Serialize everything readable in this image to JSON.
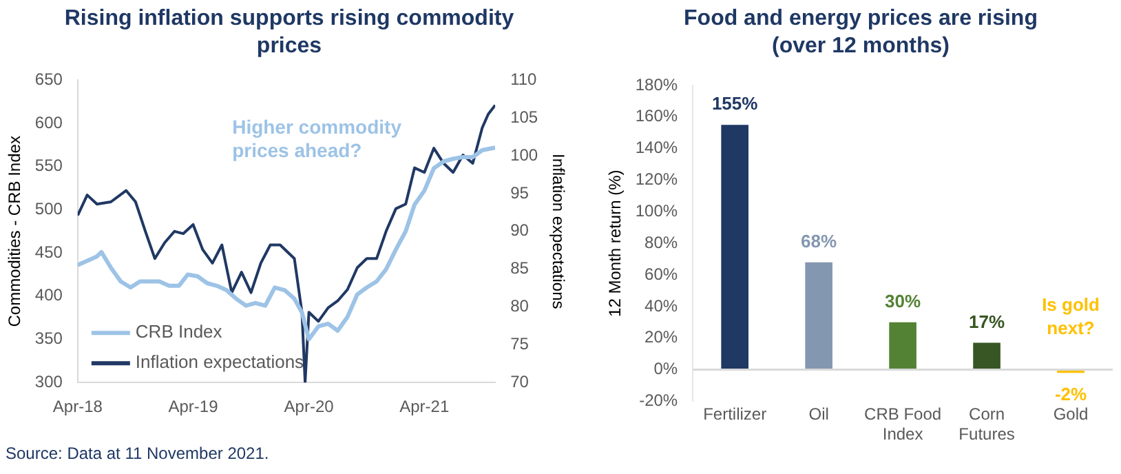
{
  "chart_data": [
    {
      "type": "line",
      "title": "Rising inflation supports rising commodity prices",
      "ylabel": "Commodities - CRB Index",
      "y2label": "Inflation expectations",
      "x": [
        "2018-04-01",
        "2018-06-01",
        "2018-06-15",
        "2018-07-15",
        "2018-08-15",
        "2018-09-15",
        "2018-10-15",
        "2018-12-15",
        "2019-01-15",
        "2019-02-15",
        "2019-03-15",
        "2019-04-15",
        "2019-05-15",
        "2019-06-15",
        "2019-07-15",
        "2019-08-15",
        "2019-09-15",
        "2019-10-15",
        "2019-11-15",
        "2019-12-15",
        "2020-01-15",
        "2020-02-15",
        "2020-03-10",
        "2020-04-01",
        "2020-05-01",
        "2020-06-01",
        "2020-07-01",
        "2020-08-01",
        "2020-09-01",
        "2020-10-01",
        "2020-11-01",
        "2020-12-01",
        "2021-01-01",
        "2021-02-01",
        "2021-03-01",
        "2021-04-01",
        "2021-05-01",
        "2021-06-01",
        "2021-07-01",
        "2021-08-01",
        "2021-09-01",
        "2021-10-01",
        "2021-11-11"
      ],
      "xlim": [
        "2018-04-01",
        "2021-11-11"
      ],
      "xticks": [
        {
          "value": "2018-04-01",
          "label": "Apr-18"
        },
        {
          "value": "2019-04-01",
          "label": "Apr-19"
        },
        {
          "value": "2020-04-01",
          "label": "Apr-20"
        },
        {
          "value": "2021-04-01",
          "label": "Apr-21"
        }
      ],
      "ylim": [
        300,
        650
      ],
      "yticks": [
        300,
        350,
        400,
        450,
        500,
        550,
        600,
        650
      ],
      "y2lim": [
        70,
        110
      ],
      "y2ticks": [
        70,
        75,
        80,
        85,
        90,
        95,
        100,
        105,
        110
      ],
      "series": [
        {
          "name": "CRB Index",
          "color": "#9dc3e6",
          "values": [
            436,
            446,
            451,
            433,
            417,
            410,
            417,
            417,
            412,
            412,
            425,
            423,
            415,
            412,
            407,
            397,
            389,
            392,
            389,
            410,
            407,
            397,
            381,
            350,
            365,
            368,
            360,
            376,
            402,
            410,
            417,
            431,
            454,
            475,
            506,
            522,
            548,
            556,
            559,
            561,
            561,
            569,
            572
          ]
        },
        {
          "name": "Inflation expectations",
          "color": "#203864",
          "axis": "y2",
          "x": [
            "2018-04-01",
            "2018-05-01",
            "2018-06-01",
            "2018-07-15",
            "2018-09-01",
            "2018-10-01",
            "2018-11-01",
            "2018-12-01",
            "2019-01-01",
            "2019-02-01",
            "2019-03-01",
            "2019-04-01",
            "2019-05-01",
            "2019-06-01",
            "2019-07-01",
            "2019-08-01",
            "2019-09-01",
            "2019-10-01",
            "2019-11-01",
            "2019-12-01",
            "2020-01-01",
            "2020-02-15",
            "2020-03-10",
            "2020-03-20",
            "2020-04-01",
            "2020-05-01",
            "2020-06-01",
            "2020-07-01",
            "2020-08-01",
            "2020-09-01",
            "2020-10-01",
            "2020-11-01",
            "2020-12-01",
            "2021-01-01",
            "2021-02-01",
            "2021-03-01",
            "2021-04-01",
            "2021-05-01",
            "2021-06-01",
            "2021-07-01",
            "2021-08-01",
            "2021-09-01",
            "2021-10-01",
            "2021-10-20",
            "2021-11-11"
          ],
          "values": [
            92.1,
            94.8,
            93.6,
            93.9,
            95.4,
            93.9,
            90.0,
            86.4,
            88.5,
            90.0,
            89.7,
            90.9,
            87.6,
            85.8,
            88.2,
            81.9,
            84.6,
            81.9,
            85.8,
            88.2,
            88.2,
            86.4,
            79.3,
            70.0,
            79.3,
            78.1,
            79.9,
            80.8,
            82.3,
            85.2,
            86.4,
            86.4,
            90.0,
            93.0,
            93.6,
            98.4,
            97.8,
            101.0,
            99.0,
            97.8,
            100.1,
            99.0,
            103.7,
            105.5,
            106.7
          ]
        }
      ],
      "legend": "bottom left",
      "grid": false,
      "annotations": [
        "Higher commodity prices ahead?",
        "Source: Data at 11 November 2021."
      ]
    },
    {
      "type": "bar",
      "title": "Food and energy prices are rising (over 12 months)",
      "ylabel": "12 Month return (%)",
      "categories": [
        "Fertilizer",
        "Oil",
        "CRB Food Index",
        "Corn Futures",
        "Gold"
      ],
      "values": [
        155,
        68,
        30,
        17,
        -2
      ],
      "colors": [
        "#1f3864",
        "#8497b0",
        "#548235",
        "#375623",
        "#ffc000"
      ],
      "value_labels": [
        "155%",
        "68%",
        "30%",
        "17%",
        "-2%"
      ],
      "ylim": [
        -20,
        180
      ],
      "yticks": [
        {
          "value": -20,
          "label": "-20%"
        },
        {
          "value": 0,
          "label": "0%"
        },
        {
          "value": 20,
          "label": "20%"
        },
        {
          "value": 40,
          "label": "40%"
        },
        {
          "value": 60,
          "label": "60%"
        },
        {
          "value": 80,
          "label": "80%"
        },
        {
          "value": 100,
          "label": "100%"
        },
        {
          "value": 120,
          "label": "120%"
        },
        {
          "value": 140,
          "label": "140%"
        },
        {
          "value": 160,
          "label": "160%"
        },
        {
          "value": 180,
          "label": "180%"
        }
      ],
      "grid": false,
      "annotations": [
        "Is gold next?"
      ]
    }
  ]
}
